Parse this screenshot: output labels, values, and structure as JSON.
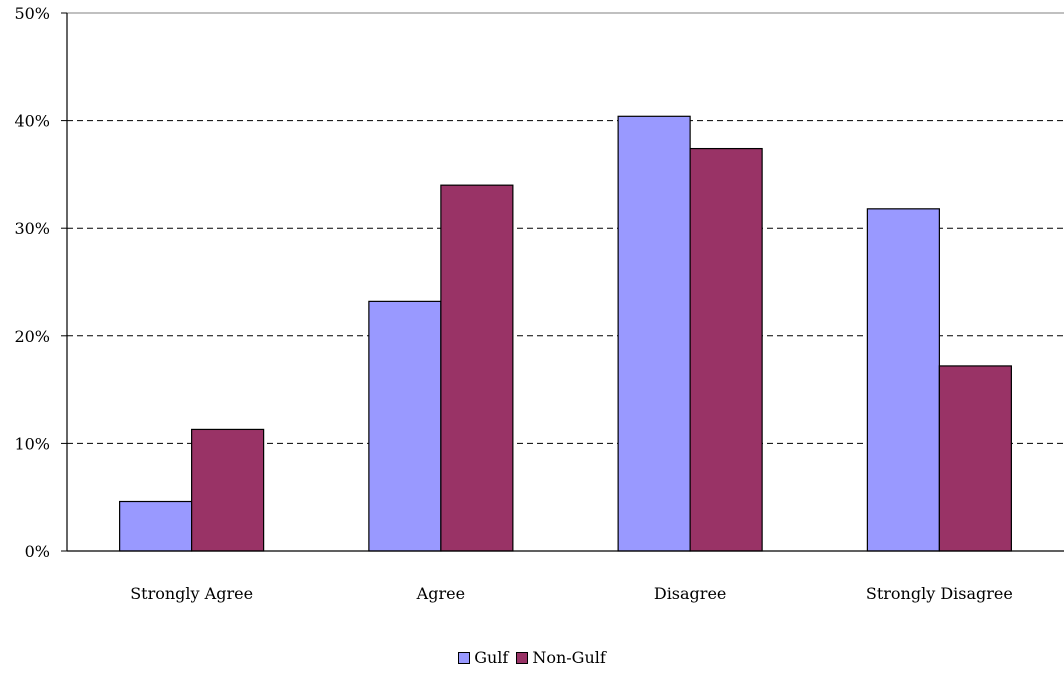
{
  "chart_data": {
    "type": "bar",
    "title": "",
    "xlabel": "",
    "ylabel": "",
    "categories": [
      "Strongly Agree",
      "Agree",
      "Disagree",
      "Strongly Disagree"
    ],
    "series": [
      {
        "name": "Gulf",
        "color": "#9999ff",
        "values": [
          4.6,
          23.2,
          40.4,
          31.8
        ]
      },
      {
        "name": "Non-Gulf",
        "color": "#993366",
        "values": [
          11.3,
          34.0,
          37.4,
          17.2
        ]
      }
    ],
    "ylim": [
      0,
      50
    ],
    "yticks": [
      "0%",
      "10%",
      "20%",
      "30%",
      "40%",
      "50%"
    ],
    "ytick_values": [
      0,
      10,
      20,
      30,
      40,
      50
    ],
    "grid": true,
    "legend_position": "bottom"
  }
}
